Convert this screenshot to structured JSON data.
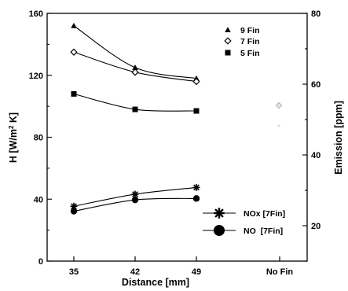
{
  "chart_data": {
    "type": "line",
    "x_categories": [
      "35",
      "42",
      "49",
      "No Fin"
    ],
    "xlabel": "Distance [mm]",
    "left_axis": {
      "label": "H [W/m 2 K]",
      "label_main": "H [W/m",
      "label_sup": "2",
      "label_end": " K]",
      "ylim": [
        0,
        160
      ],
      "ticks": [
        "0",
        "40",
        "80",
        "120",
        "160"
      ]
    },
    "right_axis": {
      "label": "Emission [ppm]",
      "ylim": [
        10,
        80
      ],
      "ticks": [
        "20",
        "40",
        "60",
        "80"
      ]
    },
    "series": [
      {
        "name": "9 Fin",
        "axis": "left",
        "marker": "triangle",
        "x": [
          35,
          42,
          49
        ],
        "values": [
          152,
          125,
          118
        ]
      },
      {
        "name": "7 Fin",
        "axis": "left",
        "marker": "diamond",
        "x": [
          35,
          42,
          49
        ],
        "values": [
          135,
          122,
          116
        ]
      },
      {
        "name": "5 Fin",
        "axis": "left",
        "marker": "square",
        "x": [
          35,
          42,
          49
        ],
        "values": [
          108,
          98,
          97
        ]
      },
      {
        "name": "NOx [7Fin]",
        "axis": "right",
        "marker": "star",
        "x": [
          35,
          42,
          49
        ],
        "values": [
          25.5,
          28.9,
          30.8
        ]
      },
      {
        "name": "NO  [7Fin]",
        "axis": "right",
        "marker": "circle",
        "x": [
          35,
          42,
          49
        ],
        "values": [
          24.1,
          27.3,
          27.7
        ]
      }
    ],
    "legend_placement": "top-right and lower-right",
    "grid": false
  }
}
